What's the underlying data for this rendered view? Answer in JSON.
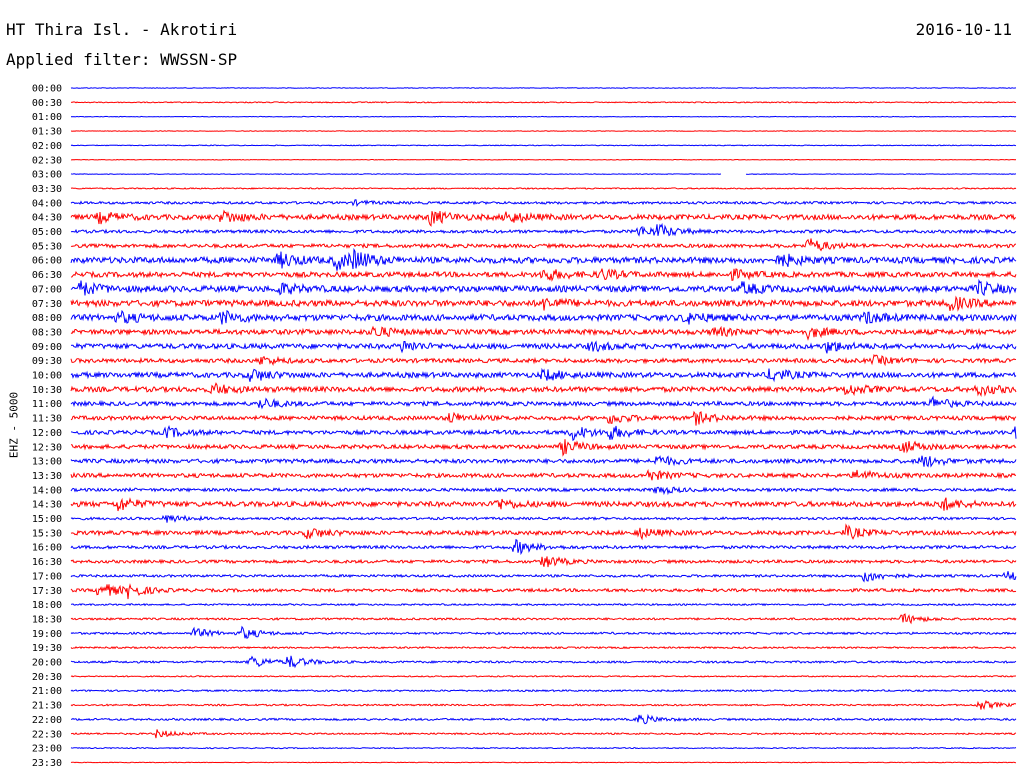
{
  "header": {
    "title": "HT Thira Isl. - Akrotiri",
    "date": "2016-10-11",
    "filter": "Applied filter: WWSSN-SP"
  },
  "chart_data": {
    "type": "line",
    "ylabel": "EHZ - 5000",
    "colors": {
      "even": "#0000ff",
      "odd": "#ff0000"
    },
    "categories": [
      "00:00",
      "00:30",
      "01:00",
      "01:30",
      "02:00",
      "02:30",
      "03:00",
      "03:30",
      "04:00",
      "04:30",
      "05:00",
      "05:30",
      "06:00",
      "06:30",
      "07:00",
      "07:30",
      "08:00",
      "08:30",
      "09:00",
      "09:30",
      "10:00",
      "10:30",
      "11:00",
      "11:30",
      "12:00",
      "12:30",
      "13:00",
      "13:30",
      "14:00",
      "14:30",
      "15:00",
      "15:30",
      "16:00",
      "16:30",
      "17:00",
      "17:30",
      "18:00",
      "18:30",
      "19:00",
      "19:30",
      "20:00",
      "20:30",
      "21:00",
      "21:30",
      "22:00",
      "22:30",
      "23:00",
      "23:30"
    ],
    "noise_level": [
      0.3,
      0.5,
      0.3,
      0.3,
      0.4,
      0.3,
      0.3,
      0.6,
      1.2,
      2.5,
      1.5,
      1.8,
      3,
      2.5,
      3,
      3,
      3,
      2.5,
      2.5,
      2,
      2.5,
      2.5,
      2,
      2,
      2,
      2,
      2,
      2,
      1.5,
      2.5,
      1.2,
      2,
      1.5,
      1.5,
      1.2,
      1.5,
      0.8,
      1,
      1,
      0.8,
      1,
      0.6,
      0.8,
      0.8,
      1,
      0.8,
      0.5,
      0.3
    ],
    "bursts": [
      [],
      [],
      [],
      [],
      [],
      [],
      [],
      [],
      [
        [
          0.3,
          2
        ]
      ],
      [
        [
          0.03,
          5
        ],
        [
          0.16,
          6
        ],
        [
          0.38,
          7
        ],
        [
          0.46,
          6
        ]
      ],
      [
        [
          0.6,
          5
        ],
        [
          0.62,
          6
        ]
      ],
      [
        [
          0.78,
          7
        ]
      ],
      [
        [
          0.22,
          7
        ],
        [
          0.28,
          8
        ],
        [
          0.3,
          7
        ],
        [
          0.75,
          6
        ]
      ],
      [
        [
          0.5,
          6
        ],
        [
          0.56,
          5
        ],
        [
          0.7,
          4
        ]
      ],
      [
        [
          0.01,
          6
        ],
        [
          0.22,
          5
        ],
        [
          0.71,
          5
        ],
        [
          0.96,
          6
        ]
      ],
      [
        [
          0.5,
          5
        ],
        [
          0.93,
          6
        ]
      ],
      [
        [
          0.05,
          5
        ],
        [
          0.16,
          6
        ],
        [
          0.65,
          5
        ],
        [
          0.84,
          5
        ]
      ],
      [
        [
          0.32,
          5
        ],
        [
          0.68,
          4
        ],
        [
          0.78,
          5
        ]
      ],
      [
        [
          0.35,
          5
        ],
        [
          0.55,
          4
        ],
        [
          0.8,
          5
        ]
      ],
      [
        [
          0.2,
          4
        ],
        [
          0.85,
          4
        ]
      ],
      [
        [
          0.19,
          6
        ],
        [
          0.5,
          5
        ],
        [
          0.74,
          6
        ]
      ],
      [
        [
          0.15,
          5
        ],
        [
          0.82,
          5
        ],
        [
          0.96,
          5
        ]
      ],
      [
        [
          0.2,
          5
        ],
        [
          0.91,
          6
        ]
      ],
      [
        [
          0.4,
          5
        ],
        [
          0.57,
          5
        ],
        [
          0.66,
          6
        ]
      ],
      [
        [
          0.1,
          5
        ],
        [
          0.53,
          7
        ],
        [
          0.57,
          6
        ],
        [
          1.0,
          6
        ]
      ],
      [
        [
          0.52,
          7
        ],
        [
          0.88,
          6
        ]
      ],
      [
        [
          0.62,
          5
        ],
        [
          0.9,
          6
        ]
      ],
      [
        [
          0.61,
          5
        ],
        [
          0.83,
          5
        ]
      ],
      [
        [
          0.62,
          4
        ]
      ],
      [
        [
          0.05,
          6
        ],
        [
          0.45,
          5
        ],
        [
          0.92,
          6
        ]
      ],
      [
        [
          0.1,
          4
        ]
      ],
      [
        [
          0.25,
          5
        ],
        [
          0.6,
          5
        ],
        [
          0.82,
          6
        ]
      ],
      [
        [
          0.47,
          7
        ]
      ],
      [
        [
          0.5,
          6
        ]
      ],
      [
        [
          0.84,
          6
        ],
        [
          0.99,
          5
        ]
      ],
      [
        [
          0.03,
          8
        ],
        [
          0.06,
          6
        ]
      ],
      [],
      [
        [
          0.88,
          5
        ]
      ],
      [
        [
          0.13,
          5
        ],
        [
          0.18,
          6
        ]
      ],
      [],
      [
        [
          0.19,
          6
        ],
        [
          0.23,
          6
        ]
      ],
      [],
      [],
      [
        [
          0.96,
          5
        ]
      ],
      [
        [
          0.6,
          5
        ]
      ],
      [
        [
          0.09,
          4
        ]
      ],
      [],
      []
    ],
    "gaps": [
      [
        6,
        0.688,
        0.714
      ]
    ]
  }
}
